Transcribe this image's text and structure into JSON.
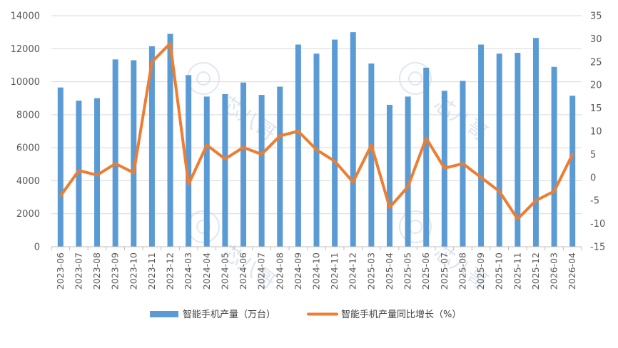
{
  "chart_data": {
    "type": "bar+line",
    "categories": [
      "2023-06",
      "2023-07",
      "2023-08",
      "2023-09",
      "2023-10",
      "2023-11",
      "2023-12",
      "2024-03",
      "2024-04",
      "2024-05",
      "2024-06",
      "2024-07",
      "2024-08",
      "2024-09",
      "2024-10",
      "2024-11",
      "2024-12",
      "2025-03",
      "2025-04",
      "2025-05",
      "2025-06",
      "2025-07",
      "2025-08",
      "2025-09",
      "2025-10",
      "2025-11",
      "2025-12",
      "2026-03",
      "2026-04"
    ],
    "series": [
      {
        "name": "智能手机产量（万台）",
        "type": "bar",
        "axis": "left",
        "color": "#5b9bd5",
        "values": [
          9650,
          8850,
          9000,
          11350,
          11300,
          12150,
          12900,
          10400,
          9100,
          9250,
          9950,
          9200,
          9700,
          12250,
          11700,
          12550,
          13000,
          11100,
          8600,
          9100,
          10850,
          9450,
          10050,
          12250,
          11700,
          11750,
          12650,
          10900,
          9150
        ]
      },
      {
        "name": "智能手机产量同比增长（%）",
        "type": "line",
        "axis": "right",
        "color": "#ed7d31",
        "values": [
          -4,
          1.5,
          0.5,
          3,
          1,
          25,
          29,
          -1.5,
          7,
          4,
          6.5,
          5,
          9,
          10,
          6,
          3.5,
          -1,
          7,
          -6.5,
          -2,
          8.5,
          2,
          3,
          0,
          -3,
          -9,
          -5,
          -3,
          5
        ]
      }
    ],
    "y_left": {
      "min": 0,
      "max": 14000,
      "ticks": [
        0,
        2000,
        4000,
        6000,
        8000,
        10000,
        12000,
        14000
      ]
    },
    "y_right": {
      "min": -15,
      "max": 35,
      "ticks": [
        -15,
        -10,
        -5,
        0,
        5,
        10,
        15,
        20,
        25,
        30,
        35
      ]
    },
    "grid": true,
    "legend_position": "bottom"
  },
  "watermark": {
    "text": "芯八哥"
  }
}
